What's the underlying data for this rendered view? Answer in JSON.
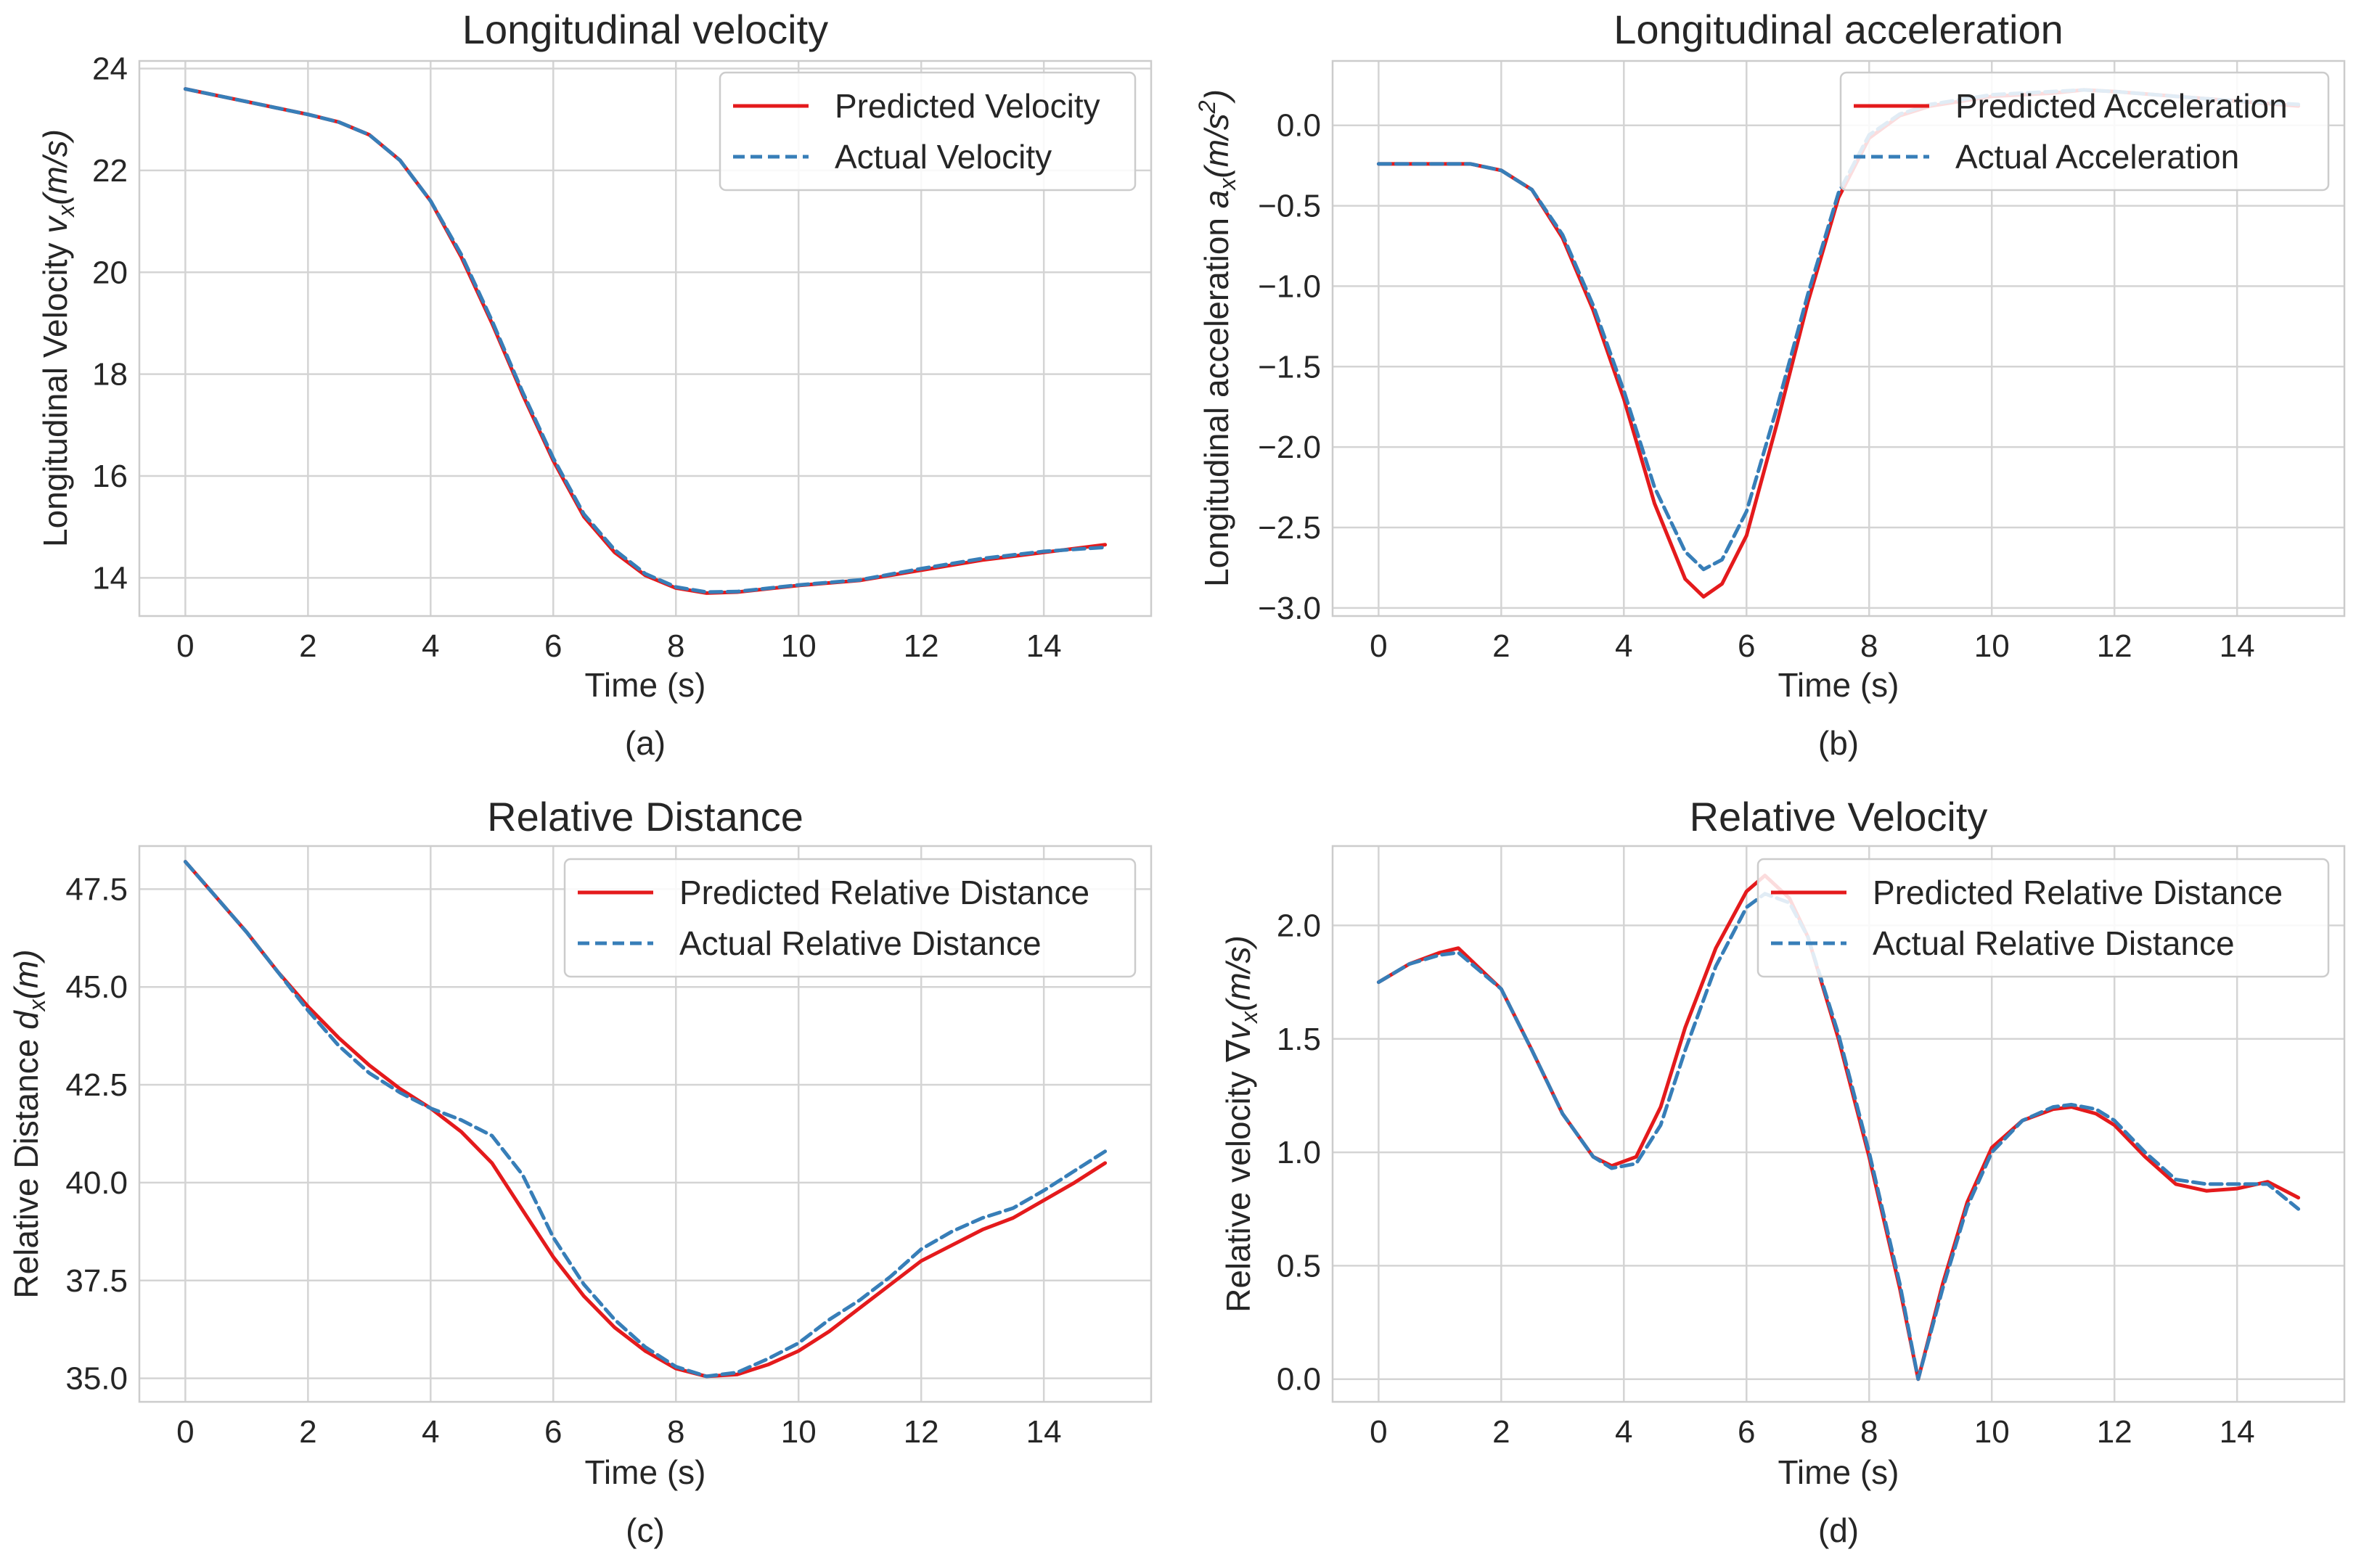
{
  "figure": {
    "colors": {
      "predicted": "#e41a1c",
      "actual": "#377eb8",
      "grid": "#d4d4d4",
      "frame": "#cccccc",
      "text": "#262626"
    }
  },
  "chart_data": [
    {
      "type": "line",
      "panel_label": "(a)",
      "title": "Longitudinal velocity",
      "xlabel": "Time (s)",
      "ylabel_text": "Longitudinal Velocity ",
      "ylabel_math": "v",
      "ylabel_sub": "x",
      "ylabel_tail": "(m/s)",
      "xlim": [
        -0.75,
        15.75
      ],
      "ylim": [
        13.25,
        24.15
      ],
      "xticks": [
        0,
        2,
        4,
        6,
        8,
        10,
        12,
        14
      ],
      "xtick_labels": [
        "0",
        "2",
        "4",
        "6",
        "8",
        "10",
        "12",
        "14"
      ],
      "yticks": [
        14,
        16,
        18,
        20,
        22,
        24
      ],
      "ytick_labels": [
        "14",
        "16",
        "18",
        "20",
        "22",
        "24"
      ],
      "legend_position": "upper right",
      "series": [
        {
          "name": "Predicted Velocity",
          "style": "solid",
          "x": [
            0,
            1,
            2,
            2.5,
            3,
            3.5,
            4,
            4.5,
            5,
            5.5,
            6,
            6.5,
            7,
            7.5,
            8,
            8.5,
            9,
            10,
            11,
            12,
            13,
            14,
            15
          ],
          "y": [
            23.6,
            23.35,
            23.1,
            22.95,
            22.7,
            22.2,
            21.4,
            20.3,
            19.0,
            17.6,
            16.3,
            15.2,
            14.5,
            14.05,
            13.8,
            13.7,
            13.72,
            13.85,
            13.95,
            14.15,
            14.35,
            14.5,
            14.65
          ]
        },
        {
          "name": "Actual Velocity",
          "style": "dashed",
          "x": [
            0,
            1,
            2,
            2.5,
            3,
            3.5,
            4,
            4.5,
            5,
            5.5,
            6,
            6.5,
            7,
            7.5,
            8,
            8.5,
            9,
            10,
            11,
            12,
            13,
            14,
            15
          ],
          "y": [
            23.6,
            23.35,
            23.1,
            22.95,
            22.7,
            22.2,
            21.4,
            20.35,
            19.05,
            17.65,
            16.35,
            15.25,
            14.55,
            14.08,
            13.82,
            13.72,
            13.73,
            13.86,
            13.96,
            14.18,
            14.38,
            14.52,
            14.6
          ]
        }
      ]
    },
    {
      "type": "line",
      "panel_label": "(b)",
      "title": "Longitudinal acceleration",
      "xlabel": "Time (s)",
      "ylabel_text": "Longitudinal acceleration ",
      "ylabel_math": "a",
      "ylabel_sub": "x",
      "ylabel_tail": "(m/s",
      "ylabel_sup": "2",
      "ylabel_end": ")",
      "xlim": [
        -0.75,
        15.75
      ],
      "ylim": [
        -3.05,
        0.4
      ],
      "xticks": [
        0,
        2,
        4,
        6,
        8,
        10,
        12,
        14
      ],
      "xtick_labels": [
        "0",
        "2",
        "4",
        "6",
        "8",
        "10",
        "12",
        "14"
      ],
      "yticks": [
        -3.0,
        -2.5,
        -2.0,
        -1.5,
        -1.0,
        -0.5,
        0.0
      ],
      "ytick_labels": [
        "−3.0",
        "−2.5",
        "−2.0",
        "−1.5",
        "−1.0",
        "−0.5",
        "0.0"
      ],
      "legend_position": "upper right",
      "series": [
        {
          "name": "Predicted Acceleration",
          "style": "solid",
          "x": [
            0,
            1,
            1.5,
            2,
            2.5,
            3,
            3.5,
            4,
            4.5,
            5,
            5.3,
            5.6,
            6,
            6.5,
            7,
            7.5,
            8,
            8.5,
            9,
            10,
            11,
            11.5,
            12,
            13,
            14,
            15
          ],
          "y": [
            -0.24,
            -0.24,
            -0.24,
            -0.28,
            -0.4,
            -0.7,
            -1.15,
            -1.7,
            -2.35,
            -2.82,
            -2.93,
            -2.85,
            -2.55,
            -1.85,
            -1.1,
            -0.45,
            -0.08,
            0.06,
            0.12,
            0.18,
            0.2,
            0.22,
            0.21,
            0.18,
            0.15,
            0.12
          ]
        },
        {
          "name": "Actual Acceleration",
          "style": "dashed",
          "x": [
            0,
            1,
            1.5,
            2,
            2.5,
            3,
            3.5,
            4,
            4.5,
            5,
            5.3,
            5.6,
            6,
            6.5,
            7,
            7.5,
            8,
            8.5,
            9,
            10,
            11,
            11.5,
            12,
            13,
            14,
            15
          ],
          "y": [
            -0.24,
            -0.24,
            -0.24,
            -0.28,
            -0.4,
            -0.68,
            -1.12,
            -1.65,
            -2.25,
            -2.65,
            -2.76,
            -2.7,
            -2.4,
            -1.75,
            -1.05,
            -0.42,
            -0.06,
            0.07,
            0.13,
            0.19,
            0.21,
            0.22,
            0.21,
            0.18,
            0.15,
            0.13
          ]
        }
      ]
    },
    {
      "type": "line",
      "panel_label": "(c)",
      "title": "Relative Distance",
      "xlabel": "Time (s)",
      "ylabel_text": "Relative Distance ",
      "ylabel_math": "d",
      "ylabel_sub": "x",
      "ylabel_tail": "(m)",
      "xlim": [
        -0.75,
        15.75
      ],
      "ylim": [
        34.4,
        48.6
      ],
      "xticks": [
        0,
        2,
        4,
        6,
        8,
        10,
        12,
        14
      ],
      "xtick_labels": [
        "0",
        "2",
        "4",
        "6",
        "8",
        "10",
        "12",
        "14"
      ],
      "yticks": [
        35.0,
        37.5,
        40.0,
        42.5,
        45.0,
        47.5
      ],
      "ytick_labels": [
        "35.0",
        "37.5",
        "40.0",
        "42.5",
        "45.0",
        "47.5"
      ],
      "legend_position": "upper right",
      "series": [
        {
          "name": "Predicted Relative Distance",
          "style": "solid",
          "x": [
            0,
            0.5,
            1,
            1.5,
            2,
            2.5,
            3,
            3.5,
            4,
            4.5,
            5,
            5.5,
            6,
            6.5,
            7,
            7.5,
            8,
            8.5,
            9,
            9.5,
            10,
            10.5,
            11,
            11.5,
            12,
            12.5,
            13,
            13.5,
            14,
            14.5,
            15
          ],
          "y": [
            48.2,
            47.3,
            46.4,
            45.4,
            44.5,
            43.7,
            43.0,
            42.4,
            41.9,
            41.3,
            40.5,
            39.3,
            38.1,
            37.1,
            36.3,
            35.7,
            35.25,
            35.05,
            35.1,
            35.35,
            35.7,
            36.2,
            36.8,
            37.4,
            38.0,
            38.4,
            38.8,
            39.1,
            39.55,
            40.0,
            40.5
          ]
        },
        {
          "name": "Actual Relative Distance",
          "style": "dashed",
          "x": [
            0,
            0.5,
            1,
            1.5,
            2,
            2.5,
            3,
            3.5,
            4,
            4.5,
            5,
            5.5,
            6,
            6.5,
            7,
            7.5,
            8,
            8.5,
            9,
            9.5,
            10,
            10.5,
            11,
            11.5,
            12,
            12.5,
            13,
            13.5,
            14,
            14.5,
            15
          ],
          "y": [
            48.2,
            47.3,
            46.4,
            45.4,
            44.4,
            43.5,
            42.8,
            42.3,
            41.9,
            41.6,
            41.2,
            40.2,
            38.6,
            37.4,
            36.5,
            35.8,
            35.3,
            35.05,
            35.15,
            35.5,
            35.9,
            36.5,
            37.0,
            37.6,
            38.3,
            38.75,
            39.1,
            39.35,
            39.8,
            40.3,
            40.8
          ]
        }
      ]
    },
    {
      "type": "line",
      "panel_label": "(d)",
      "title": "Relative Velocity",
      "xlabel": "Time (s)",
      "ylabel_text": "Relative velocity ",
      "ylabel_math": "∇v",
      "ylabel_sub": "x",
      "ylabel_tail": "(m/s)",
      "xlim": [
        -0.75,
        15.75
      ],
      "ylim": [
        -0.1,
        2.35
      ],
      "xticks": [
        0,
        2,
        4,
        6,
        8,
        10,
        12,
        14
      ],
      "xtick_labels": [
        "0",
        "2",
        "4",
        "6",
        "8",
        "10",
        "12",
        "14"
      ],
      "yticks": [
        0.0,
        0.5,
        1.0,
        1.5,
        2.0
      ],
      "ytick_labels": [
        "0.0",
        "0.5",
        "1.0",
        "1.5",
        "2.0"
      ],
      "legend_position": "upper right",
      "series": [
        {
          "name": "Predicted Relative Distance",
          "style": "solid",
          "x": [
            0,
            0.5,
            1,
            1.3,
            2,
            2.5,
            3,
            3.5,
            3.8,
            4.2,
            4.6,
            5,
            5.5,
            6,
            6.3,
            6.7,
            7,
            7.5,
            8,
            8.5,
            8.8,
            9.2,
            9.6,
            10,
            10.5,
            11,
            11.3,
            11.7,
            12,
            12.5,
            13,
            13.5,
            14,
            14.5,
            15
          ],
          "y": [
            1.75,
            1.83,
            1.88,
            1.9,
            1.72,
            1.45,
            1.17,
            0.98,
            0.94,
            0.98,
            1.2,
            1.55,
            1.9,
            2.15,
            2.22,
            2.12,
            1.95,
            1.5,
            0.98,
            0.4,
            0.0,
            0.42,
            0.78,
            1.02,
            1.14,
            1.19,
            1.2,
            1.17,
            1.12,
            0.98,
            0.86,
            0.83,
            0.84,
            0.87,
            0.8
          ]
        },
        {
          "name": "Actual Relative Distance",
          "style": "dashed",
          "x": [
            0,
            0.5,
            1,
            1.3,
            2,
            2.5,
            3,
            3.5,
            3.8,
            4.2,
            4.6,
            5,
            5.5,
            6,
            6.3,
            6.7,
            7,
            7.5,
            8,
            8.5,
            8.8,
            9.2,
            9.6,
            10,
            10.5,
            11,
            11.3,
            11.7,
            12,
            12.5,
            13,
            13.5,
            14,
            14.5,
            15
          ],
          "y": [
            1.75,
            1.83,
            1.87,
            1.88,
            1.72,
            1.45,
            1.17,
            0.98,
            0.93,
            0.95,
            1.12,
            1.45,
            1.82,
            2.08,
            2.14,
            2.1,
            1.95,
            1.52,
            1.0,
            0.42,
            0.0,
            0.4,
            0.76,
            1.0,
            1.14,
            1.2,
            1.21,
            1.19,
            1.14,
            1.0,
            0.88,
            0.86,
            0.86,
            0.86,
            0.75
          ]
        }
      ]
    }
  ]
}
